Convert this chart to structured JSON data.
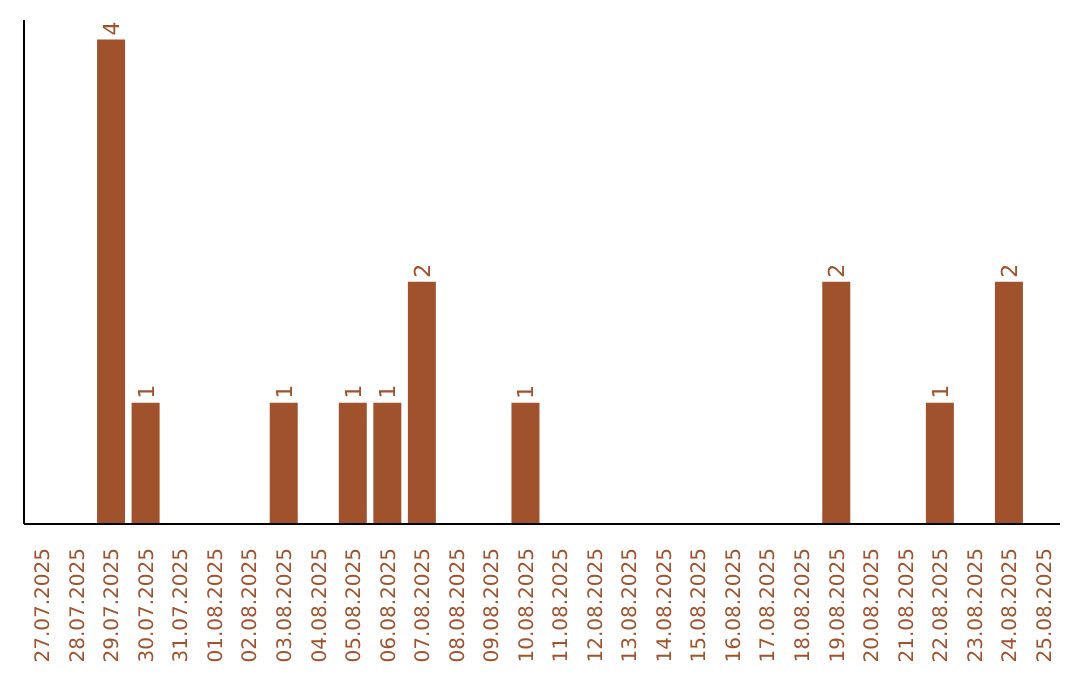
{
  "chart_data": {
    "type": "bar",
    "categories": [
      "27.07.2025",
      "28.07.2025",
      "29.07.2025",
      "30.07.2025",
      "31.07.2025",
      "01.08.2025",
      "02.08.2025",
      "03.08.2025",
      "04.08.2025",
      "05.08.2025",
      "06.08.2025",
      "07.08.2025",
      "08.08.2025",
      "09.08.2025",
      "10.08.2025",
      "11.08.2025",
      "12.08.2025",
      "13.08.2025",
      "14.08.2025",
      "15.08.2025",
      "16.08.2025",
      "17.08.2025",
      "18.08.2025",
      "19.08.2025",
      "20.08.2025",
      "21.08.2025",
      "22.08.2025",
      "23.08.2025",
      "24.08.2025",
      "25.08.2025"
    ],
    "values": [
      0,
      0,
      4,
      1,
      0,
      0,
      0,
      1,
      0,
      1,
      1,
      2,
      0,
      0,
      1,
      0,
      0,
      0,
      0,
      0,
      0,
      0,
      0,
      2,
      0,
      0,
      1,
      0,
      2,
      0
    ],
    "value_labels": [
      null,
      null,
      "4",
      "1",
      null,
      null,
      null,
      "1",
      null,
      "1",
      "1",
      "2",
      null,
      null,
      "1",
      null,
      null,
      null,
      null,
      null,
      null,
      null,
      null,
      "2",
      null,
      null,
      "1",
      null,
      "2",
      null
    ],
    "color": "#a0522d",
    "relative": false,
    "grid": false,
    "legend": false
  }
}
